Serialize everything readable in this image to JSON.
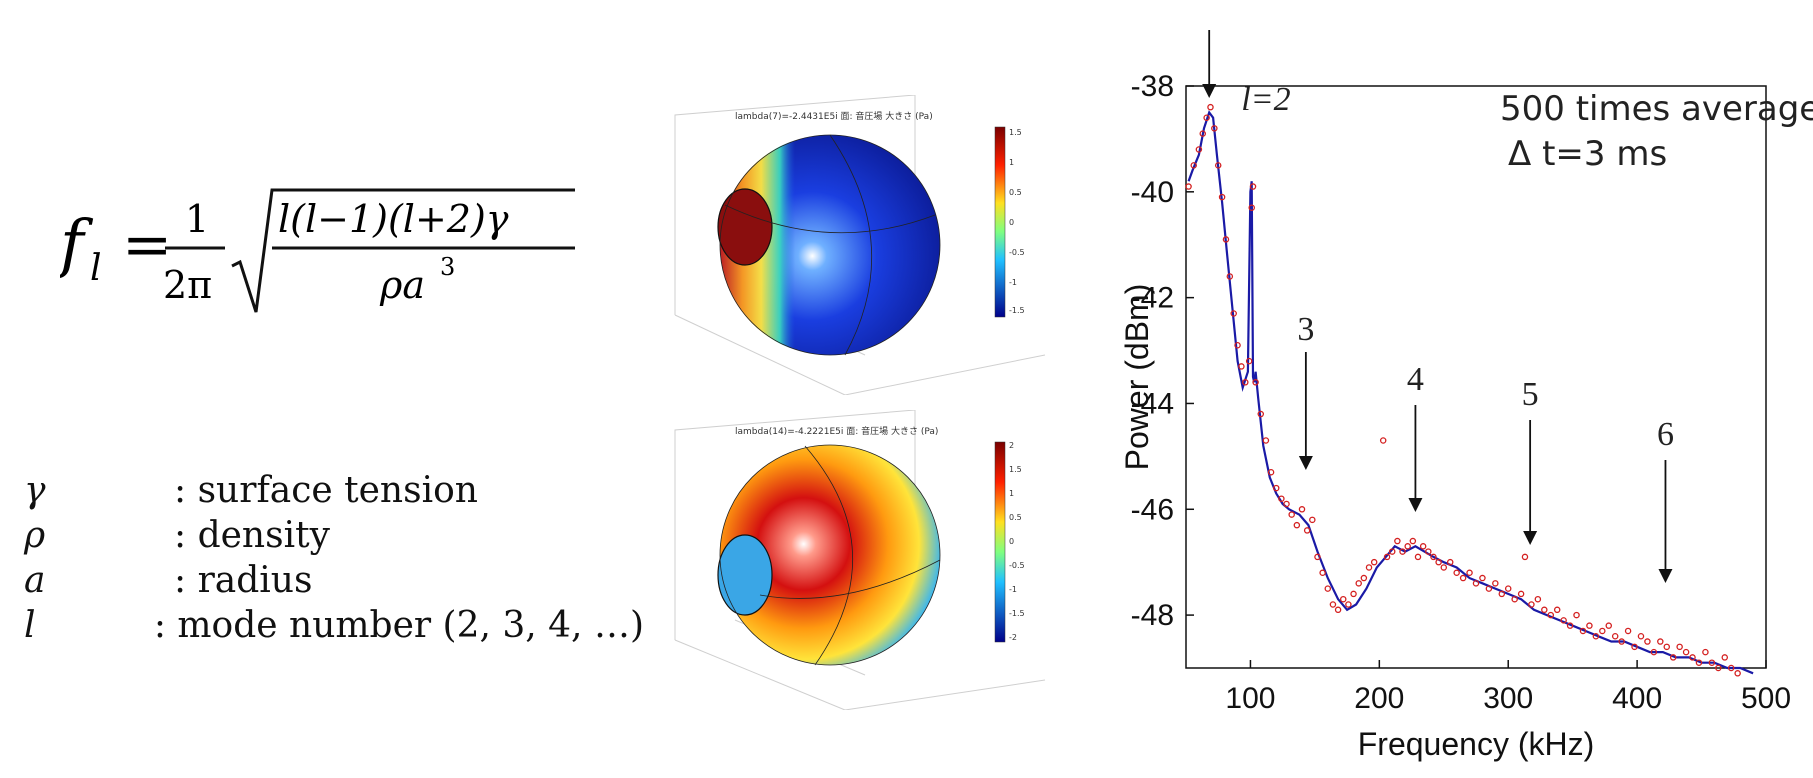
{
  "formula": {
    "lhs": "f",
    "lhs_sub": "l",
    "num": "1",
    "den": "2π",
    "inner_num": "l(l−1)(l+2)γ",
    "inner_den": "ρa",
    "inner_den_exp": "3"
  },
  "legend": [
    {
      "symbol": "γ",
      "desc": ": surface tension"
    },
    {
      "symbol": "ρ",
      "desc": ": density"
    },
    {
      "symbol": "a",
      "desc": ": radius"
    },
    {
      "symbol": "l",
      "desc": ": mode number (2, 3, 4, …)"
    }
  ],
  "simulations": [
    {
      "title": "lambda(7)=-2.4431E5i   面: 音圧場 大きさ (Pa)",
      "colorbar_ticks": [
        "1.5",
        "1",
        "0.5",
        "0",
        "-0.5",
        "-1",
        "-1.5"
      ]
    },
    {
      "title": "lambda(14)=-4.2221E5i   面: 音圧場 大きさ (Pa)",
      "colorbar_ticks": [
        "2",
        "1.5",
        "1",
        "0.5",
        "0",
        "-0.5",
        "-1",
        "-1.5",
        "-2"
      ]
    }
  ],
  "colors": {
    "line": "#1a1aa6",
    "dots": "#d42020",
    "axis": "#111111"
  },
  "chart_data": {
    "type": "line",
    "xlabel": "Frequency (kHz)",
    "ylabel": "Power (dBm)",
    "xlim": [
      50,
      500
    ],
    "ylim": [
      -49,
      -38
    ],
    "xticks": [
      100,
      200,
      300,
      400,
      500
    ],
    "yticks": [
      -38,
      -40,
      -42,
      -44,
      -46,
      -48
    ],
    "grid": false,
    "annotations": [
      "500 times average",
      "Δ t=3 ms"
    ],
    "mode_labels": [
      {
        "label": "l=2",
        "x": 68
      },
      {
        "label": "3",
        "x": 143
      },
      {
        "label": "4",
        "x": 228
      },
      {
        "label": "5",
        "x": 317
      },
      {
        "label": "6",
        "x": 422
      }
    ],
    "series": [
      {
        "style": "line",
        "x": [
          52,
          55,
          60,
          64,
          68,
          71,
          74,
          78,
          82,
          86,
          90,
          94,
          98,
          100,
          101,
          102,
          103,
          104,
          106,
          110,
          115,
          120,
          125,
          130,
          138,
          145,
          152,
          160,
          168,
          175,
          182,
          190,
          198,
          205,
          212,
          220,
          228,
          235,
          242,
          250,
          260,
          270,
          280,
          290,
          300,
          310,
          320,
          330,
          340,
          350,
          360,
          370,
          380,
          390,
          400,
          410,
          420,
          430,
          440,
          450,
          460,
          470,
          480,
          490
        ],
        "y": [
          -39.8,
          -39.6,
          -39.3,
          -38.8,
          -38.5,
          -38.6,
          -39.3,
          -40.2,
          -41.2,
          -42.2,
          -43.2,
          -43.7,
          -43.4,
          -40.0,
          -39.8,
          -43.5,
          -43.6,
          -43.4,
          -43.9,
          -44.8,
          -45.4,
          -45.7,
          -45.9,
          -46.0,
          -46.1,
          -46.3,
          -46.8,
          -47.3,
          -47.7,
          -47.9,
          -47.8,
          -47.5,
          -47.1,
          -46.9,
          -46.7,
          -46.8,
          -46.7,
          -46.8,
          -46.9,
          -47.0,
          -47.1,
          -47.3,
          -47.4,
          -47.5,
          -47.6,
          -47.7,
          -47.9,
          -48.0,
          -48.1,
          -48.2,
          -48.3,
          -48.4,
          -48.5,
          -48.5,
          -48.6,
          -48.7,
          -48.7,
          -48.8,
          -48.8,
          -48.9,
          -48.9,
          -49.0,
          -49.0,
          -49.1
        ]
      },
      {
        "style": "markers",
        "x": [
          52,
          56,
          60,
          63,
          66,
          69,
          72,
          75,
          78,
          81,
          84,
          87,
          90,
          93,
          96,
          99,
          101,
          102,
          104,
          108,
          112,
          116,
          120,
          124,
          128,
          132,
          136,
          140,
          144,
          148,
          152,
          156,
          160,
          164,
          168,
          172,
          176,
          180,
          184,
          188,
          192,
          196,
          203,
          206,
          210,
          214,
          218,
          222,
          226,
          230,
          234,
          238,
          242,
          246,
          250,
          255,
          260,
          265,
          270,
          275,
          280,
          285,
          290,
          295,
          300,
          305,
          310,
          313,
          318,
          323,
          328,
          333,
          338,
          343,
          348,
          353,
          358,
          363,
          368,
          373,
          378,
          383,
          388,
          393,
          398,
          403,
          408,
          413,
          418,
          423,
          428,
          433,
          438,
          443,
          448,
          453,
          458,
          463,
          468,
          473,
          478
        ],
        "y": [
          -39.9,
          -39.5,
          -39.2,
          -38.9,
          -38.6,
          -38.4,
          -38.8,
          -39.5,
          -40.1,
          -40.9,
          -41.6,
          -42.3,
          -42.9,
          -43.3,
          -43.6,
          -43.2,
          -40.3,
          -39.9,
          -43.6,
          -44.2,
          -44.7,
          -45.3,
          -45.6,
          -45.8,
          -45.9,
          -46.1,
          -46.3,
          -46.0,
          -46.4,
          -46.2,
          -46.9,
          -47.2,
          -47.5,
          -47.8,
          -47.9,
          -47.7,
          -47.8,
          -47.6,
          -47.4,
          -47.3,
          -47.1,
          -47.0,
          -44.7,
          -46.9,
          -46.8,
          -46.6,
          -46.8,
          -46.7,
          -46.6,
          -46.9,
          -46.7,
          -46.8,
          -46.9,
          -47.0,
          -47.1,
          -47.0,
          -47.2,
          -47.3,
          -47.2,
          -47.4,
          -47.3,
          -47.5,
          -47.4,
          -47.6,
          -47.5,
          -47.7,
          -47.6,
          -46.9,
          -47.8,
          -47.7,
          -47.9,
          -48.0,
          -47.9,
          -48.1,
          -48.2,
          -48.0,
          -48.3,
          -48.2,
          -48.4,
          -48.3,
          -48.2,
          -48.4,
          -48.5,
          -48.3,
          -48.6,
          -48.4,
          -48.5,
          -48.7,
          -48.5,
          -48.6,
          -48.8,
          -48.6,
          -48.7,
          -48.8,
          -48.9,
          -48.7,
          -48.9,
          -49.0,
          -48.8,
          -49.0,
          -49.1
        ]
      }
    ]
  }
}
